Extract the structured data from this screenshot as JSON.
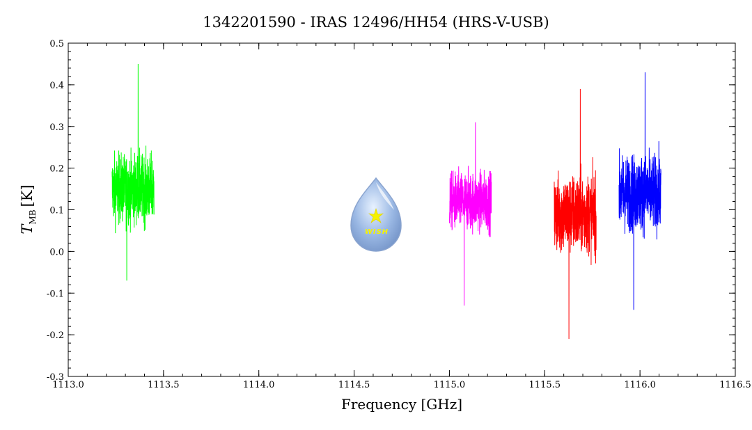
{
  "chart_data": {
    "type": "line",
    "title": "1342201590 - IRAS 12496/HH54 (HRS-V-USB)",
    "xlabel": "Frequency [GHz]",
    "ylabel": {
      "symbol": "T",
      "subscript": "MB",
      "unit": "[K]"
    },
    "xlim": [
      1113.0,
      1116.5
    ],
    "ylim": [
      -0.3,
      0.5
    ],
    "x_ticks": [
      1113.0,
      1113.5,
      1114.0,
      1114.5,
      1115.0,
      1115.5,
      1116.0,
      1116.5
    ],
    "x_tick_labels": [
      "1113.0",
      "1113.5",
      "1114.0",
      "1114.5",
      "1115.0",
      "1115.5",
      "1116.0",
      "1116.5"
    ],
    "y_ticks": [
      -0.3,
      -0.2,
      -0.1,
      0.0,
      0.1,
      0.2,
      0.3,
      0.4,
      0.5
    ],
    "y_tick_labels": [
      "-0.3",
      "-0.2",
      "-0.1",
      "0.0",
      "0.1",
      "0.2",
      "0.3",
      "0.4",
      "0.5"
    ],
    "grid": false,
    "series": [
      {
        "color": "#00ff00",
        "x_range": [
          1113.23,
          1113.45
        ],
        "mean": 0.15,
        "min": -0.07,
        "max": 0.45
      },
      {
        "color": "#ff00ff",
        "x_range": [
          1115.0,
          1115.22
        ],
        "mean": 0.12,
        "min": -0.13,
        "max": 0.31
      },
      {
        "color": "#ff0000",
        "x_range": [
          1115.55,
          1115.77
        ],
        "mean": 0.09,
        "min": -0.21,
        "max": 0.39
      },
      {
        "color": "#0000ff",
        "x_range": [
          1115.89,
          1116.11
        ],
        "mean": 0.14,
        "min": -0.14,
        "max": 0.43
      }
    ]
  },
  "logo": {
    "icon": "wish-drop-icon",
    "text": "WISH"
  }
}
